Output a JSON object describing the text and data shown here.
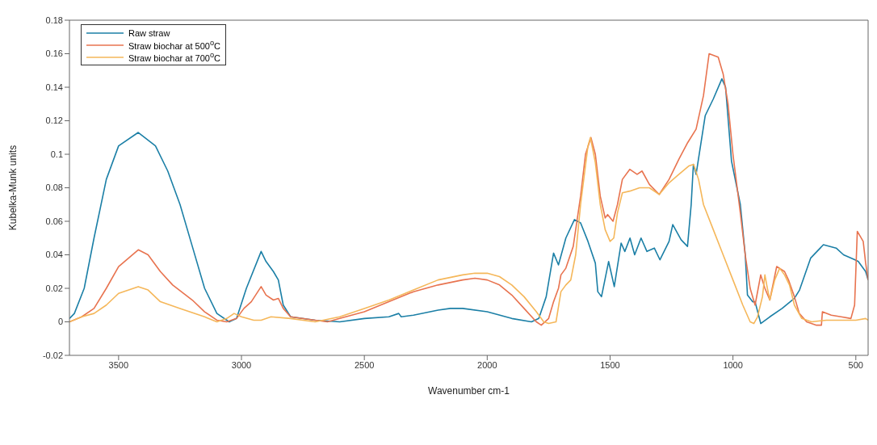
{
  "chart_data": {
    "type": "line",
    "xlabel": "Wavenumber cm-1",
    "ylabel": "Kubelka-Munk units",
    "xlim": [
      3700,
      450
    ],
    "xticks": [
      3500,
      3000,
      2500,
      2000,
      1500,
      1000,
      500
    ],
    "ylim": [
      -0.02,
      0.18
    ],
    "yticks": [
      -0.02,
      0,
      0.02,
      0.04,
      0.06,
      0.08,
      0.1,
      0.12,
      0.14,
      0.16,
      0.18
    ],
    "grid": false,
    "legend": "top left",
    "line_style": "solid",
    "marker": "none",
    "series": [
      {
        "name": "Raw straw",
        "color": "#1b7fa6",
        "x": [
          3700,
          3680,
          3640,
          3600,
          3550,
          3500,
          3420,
          3350,
          3300,
          3250,
          3200,
          3150,
          3100,
          3050,
          3020,
          2980,
          2920,
          2900,
          2870,
          2850,
          2830,
          2800,
          2700,
          2600,
          2500,
          2400,
          2360,
          2350,
          2300,
          2200,
          2150,
          2100,
          2000,
          1900,
          1820,
          1790,
          1760,
          1730,
          1710,
          1680,
          1645,
          1620,
          1590,
          1560,
          1550,
          1535,
          1506,
          1483,
          1455,
          1440,
          1419,
          1400,
          1374,
          1350,
          1320,
          1297,
          1260,
          1245,
          1211,
          1185,
          1170,
          1161,
          1150,
          1113,
          1080,
          1045,
          1030,
          1006,
          970,
          950,
          941,
          920,
          910,
          887,
          850,
          800,
          750,
          729,
          684,
          632,
          580,
          550,
          503,
          490,
          460,
          450
        ],
        "values": [
          0.002,
          0.005,
          0.02,
          0.05,
          0.085,
          0.105,
          0.113,
          0.105,
          0.09,
          0.07,
          0.045,
          0.02,
          0.005,
          0,
          0.002,
          0.02,
          0.042,
          0.036,
          0.03,
          0.025,
          0.01,
          0.003,
          0.001,
          0,
          0.002,
          0.003,
          0.005,
          0.003,
          0.004,
          0.007,
          0.008,
          0.008,
          0.006,
          0.002,
          0,
          0.002,
          0.015,
          0.041,
          0.034,
          0.05,
          0.061,
          0.059,
          0.048,
          0.035,
          0.018,
          0.015,
          0.036,
          0.021,
          0.047,
          0.042,
          0.05,
          0.04,
          0.05,
          0.042,
          0.044,
          0.037,
          0.048,
          0.058,
          0.049,
          0.045,
          0.07,
          0.094,
          0.088,
          0.123,
          0.133,
          0.145,
          0.14,
          0.096,
          0.07,
          0.04,
          0.016,
          0.012,
          0.012,
          -0.001,
          0.003,
          0.008,
          0.014,
          0.019,
          0.038,
          0.046,
          0.044,
          0.04,
          0.037,
          0.036,
          0.03,
          0.025
        ]
      },
      {
        "name": "Straw biochar at 500$^{o}$C",
        "color": "#e8734f",
        "x": [
          3700,
          3650,
          3600,
          3550,
          3500,
          3420,
          3380,
          3330,
          3280,
          3200,
          3150,
          3100,
          3060,
          3020,
          2990,
          2960,
          2920,
          2900,
          2870,
          2850,
          2830,
          2800,
          2700,
          2650,
          2600,
          2500,
          2400,
          2300,
          2200,
          2100,
          2050,
          2000,
          1950,
          1900,
          1850,
          1800,
          1780,
          1750,
          1730,
          1710,
          1700,
          1680,
          1650,
          1620,
          1600,
          1578,
          1560,
          1540,
          1520,
          1510,
          1488,
          1470,
          1450,
          1420,
          1390,
          1370,
          1340,
          1300,
          1260,
          1220,
          1184,
          1150,
          1120,
          1097,
          1060,
          1040,
          1020,
          1000,
          970,
          950,
          930,
          910,
          887,
          870,
          850,
          822,
          790,
          774,
          750,
          730,
          700,
          660,
          640,
          636,
          600,
          560,
          520,
          505,
          494,
          470,
          460,
          450
        ],
        "values": [
          0,
          0.003,
          0.008,
          0.02,
          0.033,
          0.043,
          0.04,
          0.03,
          0.022,
          0.013,
          0.006,
          0.001,
          0,
          0.002,
          0.008,
          0.012,
          0.021,
          0.016,
          0.013,
          0.014,
          0.008,
          0.003,
          0.001,
          0,
          0.002,
          0.006,
          0.012,
          0.018,
          0.022,
          0.025,
          0.026,
          0.025,
          0.022,
          0.016,
          0.008,
          0,
          -0.002,
          0.002,
          0.012,
          0.02,
          0.028,
          0.032,
          0.045,
          0.075,
          0.1,
          0.11,
          0.1,
          0.075,
          0.062,
          0.064,
          0.06,
          0.07,
          0.085,
          0.091,
          0.088,
          0.09,
          0.082,
          0.076,
          0.085,
          0.097,
          0.107,
          0.115,
          0.135,
          0.16,
          0.158,
          0.148,
          0.13,
          0.1,
          0.065,
          0.04,
          0.02,
          0.01,
          0.028,
          0.02,
          0.013,
          0.033,
          0.03,
          0.025,
          0.015,
          0.005,
          0,
          -0.002,
          -0.002,
          0.006,
          0.004,
          0.003,
          0.002,
          0.01,
          0.054,
          0.048,
          0.035,
          0.025
        ]
      },
      {
        "name": "Straw biochar at 700$^{o}$C",
        "color": "#f5b75a",
        "x": [
          3700,
          3650,
          3600,
          3550,
          3500,
          3420,
          3380,
          3330,
          3250,
          3150,
          3100,
          3060,
          3030,
          3000,
          2950,
          2920,
          2880,
          2800,
          2700,
          2600,
          2500,
          2400,
          2300,
          2200,
          2100,
          2050,
          2000,
          1950,
          1900,
          1850,
          1800,
          1770,
          1750,
          1720,
          1700,
          1680,
          1660,
          1640,
          1620,
          1590,
          1580,
          1560,
          1540,
          1520,
          1500,
          1485,
          1470,
          1450,
          1420,
          1380,
          1340,
          1300,
          1260,
          1220,
          1180,
          1160,
          1140,
          1120,
          1080,
          1040,
          1000,
          960,
          930,
          915,
          900,
          880,
          870,
          860,
          850,
          830,
          810,
          790,
          770,
          750,
          720,
          680,
          620,
          560,
          500,
          460,
          450
        ],
        "values": [
          0,
          0.003,
          0.005,
          0.01,
          0.017,
          0.021,
          0.019,
          0.012,
          0.008,
          0.003,
          0,
          0.002,
          0.005,
          0.003,
          0.001,
          0.001,
          0.003,
          0.002,
          0,
          0.003,
          0.008,
          0.013,
          0.019,
          0.025,
          0.028,
          0.029,
          0.029,
          0.027,
          0.022,
          0.015,
          0.006,
          0,
          -0.001,
          0,
          0.018,
          0.022,
          0.025,
          0.04,
          0.07,
          0.105,
          0.11,
          0.095,
          0.07,
          0.055,
          0.048,
          0.05,
          0.065,
          0.077,
          0.078,
          0.08,
          0.08,
          0.076,
          0.083,
          0.088,
          0.093,
          0.094,
          0.085,
          0.07,
          0.055,
          0.04,
          0.025,
          0.01,
          0,
          -0.001,
          0.003,
          0.015,
          0.028,
          0.02,
          0.013,
          0.025,
          0.032,
          0.028,
          0.022,
          0.01,
          0.002,
          0,
          0.001,
          0.001,
          0.001,
          0.002,
          0.001
        ]
      }
    ]
  }
}
